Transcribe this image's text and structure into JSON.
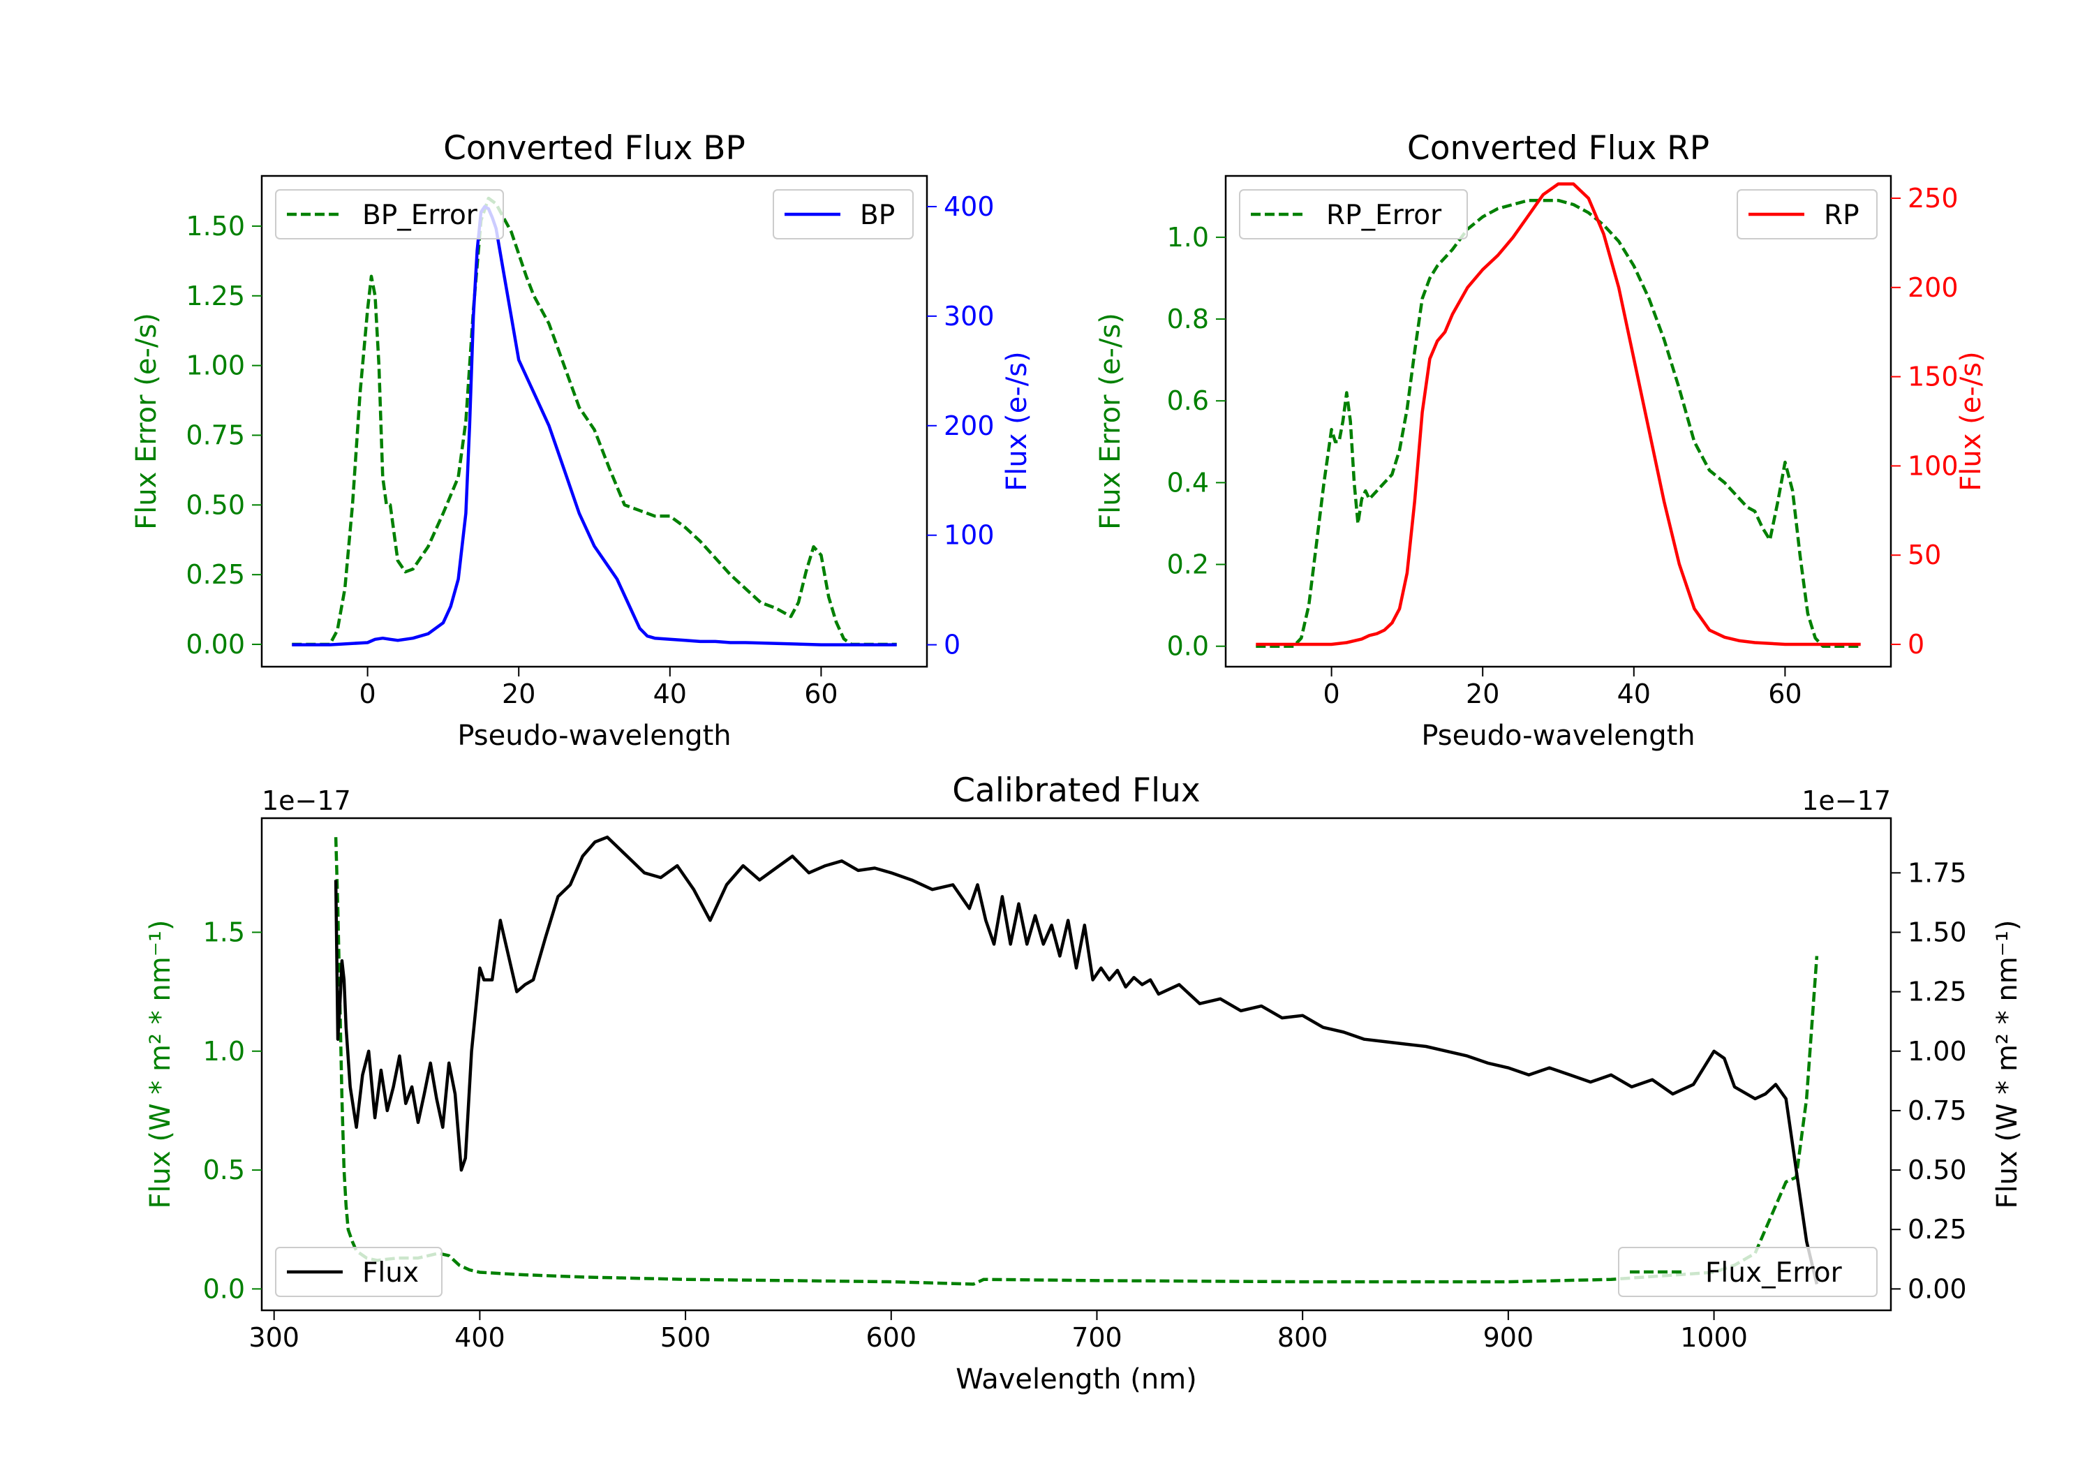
{
  "colors": {
    "error": "#008000",
    "bp": "#0000ff",
    "rp": "#ff0000",
    "flux": "#000000",
    "frame": "#000000"
  },
  "chart_data": [
    {
      "id": "bp",
      "type": "line",
      "title": "Converted Flux BP",
      "xlabel": "Pseudo-wavelength",
      "ylabel_left": "Flux Error (e-/s)",
      "ylabel_right": "Flux (e-/s)",
      "xlim": [
        -14,
        74
      ],
      "ylim_left": [
        -0.08,
        1.68
      ],
      "ylim_right": [
        -20,
        428
      ],
      "xticks": [
        {
          "v": 0,
          "label": "0"
        },
        {
          "v": 20,
          "label": "20"
        },
        {
          "v": 40,
          "label": "40"
        },
        {
          "v": 60,
          "label": "60"
        }
      ],
      "yticks_left": [
        {
          "v": 0,
          "label": "0.00"
        },
        {
          "v": 0.25,
          "label": "0.25"
        },
        {
          "v": 0.5,
          "label": "0.50"
        },
        {
          "v": 0.75,
          "label": "0.75"
        },
        {
          "v": 1.0,
          "label": "1.00"
        },
        {
          "v": 1.25,
          "label": "1.25"
        },
        {
          "v": 1.5,
          "label": "1.50"
        }
      ],
      "yticks_right": [
        {
          "v": 0,
          "label": "0"
        },
        {
          "v": 100,
          "label": "100"
        },
        {
          "v": 200,
          "label": "200"
        },
        {
          "v": 300,
          "label": "300"
        },
        {
          "v": 400,
          "label": "400"
        }
      ],
      "legend_left": {
        "name": "BP_Error",
        "position": "upper left"
      },
      "legend_right": {
        "name": "BP",
        "position": "upper right"
      },
      "error_series": {
        "name": "BP_Error",
        "x": [
          -10,
          -5,
          -4,
          -3,
          -2,
          -1,
          0,
          0.5,
          1,
          1.5,
          2,
          2.5,
          3,
          3.5,
          4,
          5,
          6,
          8,
          10,
          12,
          13,
          14,
          15,
          16,
          17,
          18,
          19,
          20,
          21,
          22,
          24,
          26,
          28,
          30,
          32,
          34,
          36,
          38,
          40,
          42,
          44,
          46,
          48,
          50,
          52,
          54,
          56,
          57,
          58,
          59,
          60,
          61,
          62,
          63,
          64,
          65,
          70
        ],
        "y": [
          0,
          0,
          0.05,
          0.2,
          0.5,
          0.9,
          1.2,
          1.32,
          1.25,
          1.0,
          0.6,
          0.5,
          0.5,
          0.4,
          0.3,
          0.26,
          0.27,
          0.35,
          0.47,
          0.6,
          0.8,
          1.2,
          1.52,
          1.6,
          1.58,
          1.53,
          1.48,
          1.4,
          1.32,
          1.25,
          1.15,
          1.0,
          0.85,
          0.77,
          0.63,
          0.5,
          0.48,
          0.46,
          0.46,
          0.42,
          0.37,
          0.31,
          0.25,
          0.2,
          0.15,
          0.13,
          0.1,
          0.15,
          0.26,
          0.35,
          0.32,
          0.17,
          0.08,
          0.02,
          0,
          0,
          0
        ]
      },
      "flux_series": {
        "name": "BP",
        "x": [
          -10,
          -5,
          0,
          1,
          2,
          3,
          4,
          6,
          8,
          10,
          11,
          12,
          13,
          13.5,
          14,
          14.5,
          15,
          15.5,
          16,
          16.5,
          17,
          18,
          19,
          20,
          22,
          24,
          26,
          28,
          30,
          32,
          33,
          34,
          35,
          36,
          37,
          38,
          40,
          42,
          44,
          46,
          48,
          50,
          55,
          60,
          65,
          70
        ],
        "y": [
          0,
          0,
          2,
          5,
          6,
          5,
          4,
          6,
          10,
          20,
          35,
          60,
          120,
          200,
          300,
          360,
          395,
          400,
          398,
          390,
          380,
          340,
          300,
          260,
          230,
          200,
          160,
          120,
          90,
          70,
          60,
          45,
          30,
          15,
          8,
          6,
          5,
          4,
          3,
          3,
          2,
          2,
          1,
          0,
          0,
          0
        ]
      }
    },
    {
      "id": "rp",
      "type": "line",
      "title": "Converted Flux RP",
      "xlabel": "Pseudo-wavelength",
      "ylabel_left": "Flux Error (e-/s)",
      "ylabel_right": "Flux (e-/s)",
      "xlim": [
        -14,
        74
      ],
      "ylim_left": [
        -0.05,
        1.15
      ],
      "ylim_right": [
        -12.5,
        262.5
      ],
      "xticks": [
        {
          "v": 0,
          "label": "0"
        },
        {
          "v": 20,
          "label": "20"
        },
        {
          "v": 40,
          "label": "40"
        },
        {
          "v": 60,
          "label": "60"
        }
      ],
      "yticks_left": [
        {
          "v": 0,
          "label": "0.0"
        },
        {
          "v": 0.2,
          "label": "0.2"
        },
        {
          "v": 0.4,
          "label": "0.4"
        },
        {
          "v": 0.6,
          "label": "0.6"
        },
        {
          "v": 0.8,
          "label": "0.8"
        },
        {
          "v": 1.0,
          "label": "1.0"
        }
      ],
      "yticks_right": [
        {
          "v": 0,
          "label": "0"
        },
        {
          "v": 50,
          "label": "50"
        },
        {
          "v": 100,
          "label": "100"
        },
        {
          "v": 150,
          "label": "150"
        },
        {
          "v": 200,
          "label": "200"
        },
        {
          "v": 250,
          "label": "250"
        }
      ],
      "legend_left": {
        "name": "RP_Error",
        "position": "upper left"
      },
      "legend_right": {
        "name": "RP",
        "position": "upper right"
      },
      "error_series": {
        "name": "RP_Error",
        "x": [
          -10,
          -5,
          -4,
          -3,
          -2,
          -1,
          0,
          0.5,
          1,
          1.5,
          2,
          2.5,
          3,
          3.5,
          4,
          4.5,
          5,
          6,
          7,
          8,
          9,
          10,
          11,
          12,
          13,
          14,
          16,
          18,
          20,
          22,
          24,
          26,
          28,
          30,
          32,
          34,
          36,
          38,
          40,
          42,
          44,
          46,
          48,
          50,
          52,
          54,
          55,
          56,
          57,
          58,
          59,
          60,
          61,
          62,
          63,
          64,
          65,
          70
        ],
        "y": [
          0,
          0,
          0.02,
          0.1,
          0.25,
          0.4,
          0.53,
          0.5,
          0.5,
          0.55,
          0.62,
          0.55,
          0.4,
          0.3,
          0.36,
          0.38,
          0.36,
          0.38,
          0.4,
          0.42,
          0.48,
          0.58,
          0.72,
          0.85,
          0.9,
          0.93,
          0.97,
          1.02,
          1.05,
          1.07,
          1.08,
          1.09,
          1.09,
          1.09,
          1.08,
          1.06,
          1.03,
          0.99,
          0.93,
          0.85,
          0.75,
          0.63,
          0.5,
          0.43,
          0.4,
          0.36,
          0.34,
          0.33,
          0.29,
          0.26,
          0.35,
          0.45,
          0.38,
          0.22,
          0.08,
          0.02,
          0,
          0
        ]
      },
      "flux_series": {
        "name": "RP",
        "x": [
          -10,
          -5,
          0,
          2,
          4,
          5,
          6,
          7,
          8,
          9,
          10,
          11,
          12,
          13,
          14,
          15,
          16,
          18,
          20,
          22,
          24,
          26,
          28,
          30,
          32,
          34,
          36,
          38,
          40,
          42,
          44,
          46,
          48,
          50,
          52,
          54,
          56,
          60,
          65,
          70
        ],
        "y": [
          0,
          0,
          0,
          1,
          3,
          5,
          6,
          8,
          12,
          20,
          40,
          80,
          130,
          160,
          170,
          175,
          185,
          200,
          210,
          218,
          228,
          240,
          252,
          258,
          258,
          250,
          230,
          200,
          160,
          120,
          80,
          45,
          20,
          8,
          4,
          2,
          1,
          0,
          0,
          0
        ]
      }
    },
    {
      "id": "calibrated",
      "type": "line",
      "title": "Calibrated Flux",
      "xlabel": "Wavelength (nm)",
      "ylabel_left": "Flux (W * m² * nm⁻¹)",
      "ylabel_right": "Flux (W * m² * nm⁻¹)",
      "offset_left": "1e−17",
      "offset_right": "1e−17",
      "xlim": [
        294,
        1086
      ],
      "ylim_left": [
        -0.09,
        1.98
      ],
      "ylim_right": [
        -0.09,
        1.98
      ],
      "xticks": [
        {
          "v": 300,
          "label": "300"
        },
        {
          "v": 400,
          "label": "400"
        },
        {
          "v": 500,
          "label": "500"
        },
        {
          "v": 600,
          "label": "600"
        },
        {
          "v": 700,
          "label": "700"
        },
        {
          "v": 800,
          "label": "800"
        },
        {
          "v": 900,
          "label": "900"
        },
        {
          "v": 1000,
          "label": "1000"
        }
      ],
      "yticks_left": [
        {
          "v": 0,
          "label": "0.0"
        },
        {
          "v": 0.5,
          "label": "0.5"
        },
        {
          "v": 1.0,
          "label": "1.0"
        },
        {
          "v": 1.5,
          "label": "1.5"
        }
      ],
      "yticks_right": [
        {
          "v": 0,
          "label": "0.00"
        },
        {
          "v": 0.25,
          "label": "0.25"
        },
        {
          "v": 0.5,
          "label": "0.50"
        },
        {
          "v": 0.75,
          "label": "0.75"
        },
        {
          "v": 1.0,
          "label": "1.00"
        },
        {
          "v": 1.25,
          "label": "1.25"
        },
        {
          "v": 1.5,
          "label": "1.50"
        },
        {
          "v": 1.75,
          "label": "1.75"
        }
      ],
      "legend_left": {
        "name": "Flux",
        "position": "lower left"
      },
      "legend_right": {
        "name": "Flux_Error",
        "position": "lower right"
      },
      "error_series": {
        "name": "Flux_Error",
        "x": [
          330,
          331,
          332,
          333,
          334,
          335,
          336,
          338,
          340,
          345,
          350,
          360,
          370,
          380,
          385,
          390,
          395,
          400,
          420,
          450,
          500,
          550,
          600,
          620,
          640,
          645,
          700,
          800,
          900,
          950,
          1000,
          1010,
          1020,
          1025,
          1030,
          1035,
          1040,
          1045,
          1050
        ],
        "y": [
          1.9,
          1.6,
          1.2,
          0.8,
          0.5,
          0.35,
          0.25,
          0.2,
          0.16,
          0.13,
          0.12,
          0.13,
          0.13,
          0.15,
          0.14,
          0.1,
          0.08,
          0.07,
          0.06,
          0.05,
          0.04,
          0.035,
          0.03,
          0.025,
          0.02,
          0.04,
          0.035,
          0.03,
          0.03,
          0.04,
          0.07,
          0.1,
          0.15,
          0.25,
          0.35,
          0.45,
          0.47,
          0.8,
          1.4
        ]
      },
      "flux_series": {
        "name": "Flux",
        "x": [
          330,
          331,
          332,
          333,
          334,
          335,
          337,
          340,
          343,
          346,
          349,
          352,
          355,
          358,
          361,
          364,
          367,
          370,
          373,
          376,
          379,
          382,
          385,
          388,
          391,
          393,
          396,
          400,
          402,
          406,
          410,
          414,
          418,
          422,
          426,
          432,
          438,
          444,
          450,
          456,
          462,
          468,
          474,
          480,
          488,
          496,
          504,
          512,
          520,
          528,
          536,
          544,
          552,
          560,
          568,
          576,
          584,
          592,
          600,
          610,
          620,
          630,
          638,
          642,
          646,
          650,
          654,
          658,
          662,
          666,
          670,
          674,
          678,
          682,
          686,
          690,
          694,
          698,
          702,
          706,
          710,
          714,
          718,
          722,
          726,
          730,
          740,
          750,
          760,
          770,
          780,
          790,
          800,
          810,
          820,
          830,
          840,
          850,
          860,
          870,
          880,
          890,
          900,
          910,
          920,
          930,
          940,
          950,
          960,
          970,
          980,
          990,
          1000,
          1005,
          1010,
          1020,
          1025,
          1030,
          1035,
          1040,
          1045,
          1050
        ],
        "y": [
          1.72,
          1.05,
          1.2,
          1.38,
          1.3,
          1.1,
          0.85,
          0.68,
          0.9,
          1.0,
          0.72,
          0.92,
          0.75,
          0.85,
          0.98,
          0.78,
          0.85,
          0.7,
          0.82,
          0.95,
          0.8,
          0.68,
          0.95,
          0.82,
          0.5,
          0.55,
          1.0,
          1.35,
          1.3,
          1.3,
          1.55,
          1.4,
          1.25,
          1.28,
          1.3,
          1.48,
          1.65,
          1.7,
          1.82,
          1.88,
          1.9,
          1.85,
          1.8,
          1.75,
          1.73,
          1.78,
          1.68,
          1.55,
          1.7,
          1.78,
          1.72,
          1.77,
          1.82,
          1.75,
          1.78,
          1.8,
          1.76,
          1.77,
          1.75,
          1.72,
          1.68,
          1.7,
          1.6,
          1.7,
          1.55,
          1.45,
          1.65,
          1.45,
          1.62,
          1.45,
          1.57,
          1.45,
          1.53,
          1.4,
          1.55,
          1.35,
          1.53,
          1.3,
          1.35,
          1.3,
          1.34,
          1.27,
          1.31,
          1.28,
          1.3,
          1.24,
          1.28,
          1.2,
          1.22,
          1.17,
          1.19,
          1.14,
          1.15,
          1.1,
          1.08,
          1.05,
          1.04,
          1.03,
          1.02,
          1.0,
          0.98,
          0.95,
          0.93,
          0.9,
          0.93,
          0.9,
          0.87,
          0.9,
          0.85,
          0.88,
          0.82,
          0.86,
          1.0,
          0.97,
          0.85,
          0.8,
          0.82,
          0.86,
          0.8,
          0.5,
          0.2,
          0.02
        ]
      }
    }
  ]
}
